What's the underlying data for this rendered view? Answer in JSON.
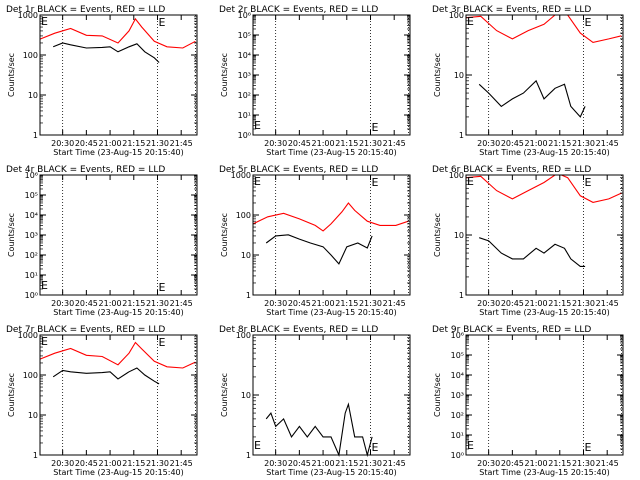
{
  "figure": {
    "xtick_labels": [
      "20:30",
      "20:45",
      "21:00",
      "21:15",
      "21:30",
      "21:45"
    ],
    "x_axis_label": "Start Time (23-Aug-15 20:15:40)",
    "y_axis_label": "Counts/sec",
    "marker_label": "E"
  },
  "chart_data": [
    {
      "type": "line",
      "title": "Det 1r BLACK = Events, RED = LLD",
      "xlabel": "Start Time (23-Aug-15 20:15:40)",
      "ylabel": "Counts/sec",
      "ylog": true,
      "ylim": [
        1,
        1000
      ],
      "ytick_labels": [
        "1",
        "10",
        "100",
        "1000"
      ],
      "series": [
        {
          "color": "#ff0000",
          "x": [
            "20:15:40",
            "20:25",
            "20:35",
            "20:45",
            "20:55",
            "21:05",
            "21:12",
            "21:16",
            "21:20",
            "21:28",
            "21:36",
            "21:46",
            "21:54"
          ],
          "y": [
            250,
            350,
            460,
            310,
            300,
            200,
            400,
            800,
            500,
            220,
            160,
            150,
            220
          ]
        },
        {
          "color": "#000000",
          "x": [
            "20:24",
            "20:30",
            "20:35",
            "20:45",
            "20:55",
            "21:00",
            "21:05",
            "21:12",
            "21:17",
            "21:22",
            "21:28",
            "21:31"
          ],
          "y": [
            160,
            200,
            180,
            150,
            155,
            160,
            120,
            160,
            190,
            120,
            85,
            65
          ]
        }
      ]
    },
    {
      "type": "line",
      "title": "Det 2r BLACK = Events, RED = LLD",
      "xlabel": "Start Time (23-Aug-15 20:15:40)",
      "ylabel": "Counts/sec",
      "ylog": true,
      "ylim": [
        1,
        1000000
      ],
      "ytick_labels": [
        "10⁰",
        "10¹",
        "10²",
        "10³",
        "10⁴",
        "10⁵",
        "10⁶"
      ],
      "series": []
    },
    {
      "type": "line",
      "title": "Det 3r BLACK = Events, RED = LLD",
      "xlabel": "Start Time (23-Aug-15 20:15:40)",
      "ylabel": "Counts/sec",
      "ylog": true,
      "ylim": [
        1,
        100
      ],
      "ytick_labels": [
        "1",
        "10",
        "100"
      ],
      "series": [
        {
          "color": "#ff0000",
          "x": [
            "20:15:40",
            "20:25",
            "20:35",
            "20:45",
            "20:55",
            "21:05",
            "21:12",
            "21:16",
            "21:20",
            "21:28",
            "21:36",
            "21:46",
            "21:54"
          ],
          "y": [
            90,
            95,
            55,
            40,
            55,
            70,
            100,
            100,
            100,
            50,
            35,
            40,
            45
          ]
        },
        {
          "color": "#000000",
          "x": [
            "20:24",
            "20:30",
            "20:38",
            "20:45",
            "20:52",
            "21:00",
            "21:05",
            "21:12",
            "21:18",
            "21:22",
            "21:28",
            "21:31"
          ],
          "y": [
            7,
            5,
            3,
            4,
            5,
            8,
            4,
            6,
            7,
            3,
            2,
            3
          ]
        }
      ]
    },
    {
      "type": "line",
      "title": "Det 4r BLACK = Events, RED = LLD",
      "xlabel": "Start Time (23-Aug-15 20:15:40)",
      "ylabel": "Counts/sec",
      "ylog": true,
      "ylim": [
        1,
        1000000
      ],
      "ytick_labels": [
        "10⁰",
        "10¹",
        "10²",
        "10³",
        "10⁴",
        "10⁵",
        "10⁶"
      ],
      "series": []
    },
    {
      "type": "line",
      "title": "Det 5r BLACK = Events, RED = LLD",
      "xlabel": "Start Time (23-Aug-15 20:15:40)",
      "ylabel": "Counts/sec",
      "ylog": true,
      "ylim": [
        1,
        1000
      ],
      "ytick_labels": [
        "1",
        "10",
        "100",
        "1000"
      ],
      "series": [
        {
          "color": "#ff0000",
          "x": [
            "20:15:40",
            "20:25",
            "20:35",
            "20:45",
            "20:55",
            "21:00",
            "21:05",
            "21:12",
            "21:16",
            "21:20",
            "21:28",
            "21:36",
            "21:46",
            "21:54"
          ],
          "y": [
            60,
            90,
            110,
            80,
            55,
            40,
            60,
            120,
            200,
            130,
            70,
            55,
            55,
            70
          ]
        },
        {
          "color": "#000000",
          "x": [
            "20:24",
            "20:30",
            "20:38",
            "20:45",
            "20:52",
            "21:00",
            "21:05",
            "21:10",
            "21:15",
            "21:22",
            "21:28",
            "21:31"
          ],
          "y": [
            20,
            30,
            32,
            25,
            20,
            16,
            10,
            6,
            16,
            20,
            15,
            30
          ]
        }
      ]
    },
    {
      "type": "line",
      "title": "Det 6r BLACK = Events, RED = LLD",
      "xlabel": "Start Time (23-Aug-15 20:15:40)",
      "ylabel": "Counts/sec",
      "ylog": true,
      "ylim": [
        1,
        100
      ],
      "ytick_labels": [
        "1",
        "10",
        "100"
      ],
      "series": [
        {
          "color": "#ff0000",
          "x": [
            "20:15:40",
            "20:25",
            "20:35",
            "20:45",
            "20:55",
            "21:05",
            "21:12",
            "21:16",
            "21:20",
            "21:28",
            "21:36",
            "21:46",
            "21:54"
          ],
          "y": [
            90,
            95,
            55,
            40,
            55,
            75,
            100,
            100,
            90,
            45,
            35,
            40,
            50
          ]
        },
        {
          "color": "#000000",
          "x": [
            "20:24",
            "20:30",
            "20:38",
            "20:45",
            "20:52",
            "21:00",
            "21:05",
            "21:12",
            "21:18",
            "21:22",
            "21:28",
            "21:31"
          ],
          "y": [
            9,
            8,
            5,
            4,
            4,
            6,
            5,
            7,
            6,
            4,
            3,
            3
          ]
        }
      ]
    },
    {
      "type": "line",
      "title": "Det 7r BLACK = Events, RED = LLD",
      "xlabel": "Start Time (23-Aug-15 20:15:40)",
      "ylabel": "Counts/sec",
      "ylog": true,
      "ylim": [
        1,
        1000
      ],
      "ytick_labels": [
        "1",
        "10",
        "100",
        "1000"
      ],
      "series": [
        {
          "color": "#ff0000",
          "x": [
            "20:15:40",
            "20:25",
            "20:35",
            "20:45",
            "20:55",
            "21:05",
            "21:12",
            "21:16",
            "21:20",
            "21:28",
            "21:36",
            "21:46",
            "21:54"
          ],
          "y": [
            250,
            350,
            460,
            310,
            290,
            180,
            350,
            650,
            450,
            220,
            160,
            150,
            210
          ]
        },
        {
          "color": "#000000",
          "x": [
            "20:24",
            "20:30",
            "20:35",
            "20:45",
            "20:55",
            "21:00",
            "21:05",
            "21:12",
            "21:17",
            "21:22",
            "21:28",
            "21:31"
          ],
          "y": [
            90,
            130,
            120,
            110,
            115,
            120,
            80,
            120,
            150,
            100,
            70,
            60
          ]
        }
      ]
    },
    {
      "type": "line",
      "title": "Det 8r BLACK = Events, RED = LLD",
      "xlabel": "Start Time (23-Aug-15 20:15:40)",
      "ylabel": "Counts/sec",
      "ylog": true,
      "ylim": [
        1,
        100
      ],
      "ytick_labels": [
        "1",
        "10",
        "100"
      ],
      "series": [
        {
          "color": "#000000",
          "x": [
            "20:24",
            "20:27",
            "20:30",
            "20:35",
            "20:40",
            "20:45",
            "20:50",
            "20:55",
            "21:00",
            "21:05",
            "21:10",
            "21:14",
            "21:16",
            "21:20",
            "21:25",
            "21:28",
            "21:31"
          ],
          "y": [
            4,
            5,
            3,
            4,
            2,
            3,
            2,
            3,
            2,
            2,
            1,
            5,
            7,
            2,
            2,
            1,
            2
          ]
        }
      ]
    },
    {
      "type": "line",
      "title": "Det 9r BLACK = Events, RED = LLD",
      "xlabel": "Start Time (23-Aug-15 20:15:40)",
      "ylabel": "Counts/sec",
      "ylog": true,
      "ylim": [
        1,
        1000000
      ],
      "ytick_labels": [
        "10⁰",
        "10¹",
        "10²",
        "10³",
        "10⁴",
        "10⁵",
        "10⁶"
      ],
      "series": []
    }
  ]
}
